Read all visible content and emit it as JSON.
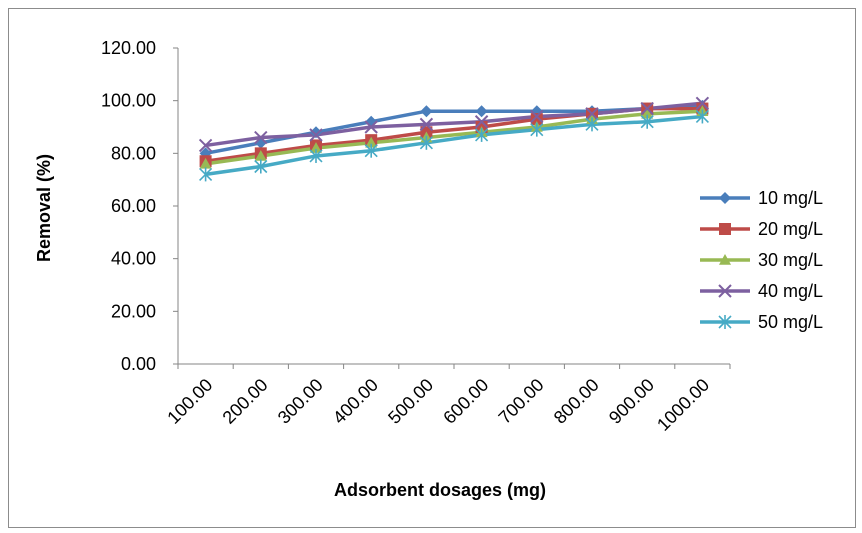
{
  "chart_data": {
    "type": "line",
    "xlabel": "Adsorbent dosages (mg)",
    "ylabel": "Removal (%)",
    "categories": [
      "100.00",
      "200.00",
      "300.00",
      "400.00",
      "500.00",
      "600.00",
      "700.00",
      "800.00",
      "900.00",
      "1000.00"
    ],
    "yticks": [
      "0.00",
      "20.00",
      "40.00",
      "60.00",
      "80.00",
      "100.00",
      "120.00"
    ],
    "ylim": [
      0,
      120
    ],
    "grid": false,
    "legend_position": "right",
    "series": [
      {
        "name": "10 mg/L",
        "color": "#4a7ebb",
        "marker": "diamond",
        "values": [
          80,
          84,
          88,
          92,
          96,
          96,
          96,
          96,
          97,
          98
        ]
      },
      {
        "name": "20 mg/L",
        "color": "#be4b48",
        "marker": "square",
        "values": [
          77,
          80,
          83,
          85,
          88,
          90,
          93,
          95,
          97,
          97
        ]
      },
      {
        "name": "30 mg/L",
        "color": "#98b954",
        "marker": "triangle",
        "values": [
          76,
          79,
          82,
          84,
          86,
          88,
          90,
          93,
          95,
          96
        ]
      },
      {
        "name": "40 mg/L",
        "color": "#7d60a0",
        "marker": "x",
        "values": [
          83,
          86,
          87,
          90,
          91,
          92,
          94,
          95,
          97,
          99
        ]
      },
      {
        "name": "50 mg/L",
        "color": "#46aac5",
        "marker": "star",
        "values": [
          72,
          75,
          79,
          81,
          84,
          87,
          89,
          91,
          92,
          94
        ]
      }
    ]
  }
}
